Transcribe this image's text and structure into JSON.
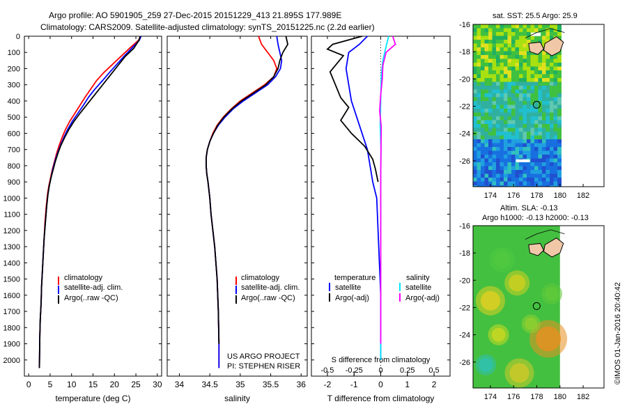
{
  "header": {
    "line1": "Argo profile: AO 5901905_259 27-Dec-2015 20151229_413 21.895S 177.989E",
    "line2": "Climatology: CARS2009. Satellite-adjusted climatology: synTS_20151225.nc (2.2d earlier)"
  },
  "legend": {
    "climatology": "climatology",
    "satellite_adj": "satellite-adj. clim.",
    "argo_raw": "Argo(..raw -QC)",
    "temperature_head": "temperature",
    "salinity_head": "salinity",
    "satellite": "satellite",
    "argo_adj": "Argo(-adj)"
  },
  "project": {
    "line1": "US ARGO PROJECT",
    "line2": "PI: STEPHEN RISER"
  },
  "map_top_title": "sat. SST: 25.5 Argo: 25.9",
  "map_bottom_title1": "Altim. SLA: -0.13",
  "map_bottom_title2": "Argo h1000: -0.13 h2000: -0.13",
  "watermark": "©IMOS 01-Jan-2016 20:40:42",
  "colors": {
    "climatology": "#ff0000",
    "satellite": "#0000ff",
    "argo": "#000000",
    "sat_salinity": "#00e5ff",
    "argo_salinity": "#ff00ff",
    "land": "#f0c8a8"
  },
  "chart_data": [
    {
      "type": "line",
      "xlabel": "temperature (deg C)",
      "ylabel": "",
      "xlim": [
        -1,
        31
      ],
      "ylim": [
        2100,
        0
      ],
      "xticks": [
        0,
        5,
        10,
        15,
        20,
        25,
        30
      ],
      "yticks": [
        0,
        100,
        200,
        300,
        400,
        500,
        600,
        700,
        800,
        900,
        1000,
        1100,
        1200,
        1300,
        1400,
        1500,
        1600,
        1700,
        1800,
        1900,
        2000
      ],
      "series": [
        {
          "name": "climatology",
          "color": "#ff0000",
          "x": [
            26.2,
            25.6,
            23.5,
            21.5,
            19.5,
            17.5,
            15.8,
            14.5,
            13.2,
            12,
            10.8,
            9.6,
            8.6,
            7.8,
            7.1,
            6.5,
            6,
            5.5,
            5.1,
            4.7,
            4.4,
            4.1,
            3.8,
            3.6,
            3.4,
            3.2,
            3,
            2.9,
            2.7,
            2.6,
            2.55,
            2.5
          ],
          "y": [
            0,
            25,
            75,
            125,
            175,
            225,
            275,
            325,
            375,
            425,
            475,
            525,
            575,
            625,
            675,
            725,
            775,
            825,
            875,
            925,
            975,
            1050,
            1150,
            1250,
            1350,
            1450,
            1550,
            1650,
            1750,
            1850,
            1950,
            2050
          ]
        },
        {
          "name": "satellite-adj. clim.",
          "color": "#0000ff",
          "x": [
            26.2,
            25.8,
            24,
            22.2,
            20.5,
            18.8,
            17.2,
            15.5,
            14,
            12.8,
            11.5,
            10.2,
            9.1,
            8.2,
            7.4,
            6.7,
            6.1,
            5.6,
            5.2,
            4.8,
            4.5,
            4.2,
            3.9,
            3.6,
            3.4,
            3.2,
            3,
            2.9,
            2.7,
            2.6,
            2.55,
            2.5
          ],
          "y": [
            0,
            25,
            75,
            125,
            175,
            225,
            275,
            325,
            375,
            425,
            475,
            525,
            575,
            625,
            675,
            725,
            775,
            825,
            875,
            925,
            975,
            1050,
            1150,
            1250,
            1350,
            1450,
            1550,
            1650,
            1750,
            1850,
            1950,
            2050
          ]
        },
        {
          "name": "Argo(..raw -QC)",
          "color": "#000000",
          "x": [
            26,
            25.7,
            24.5,
            22.5,
            21,
            19.5,
            18,
            16.5,
            15,
            13.5,
            12,
            10.6,
            9.4,
            8.4,
            7.5,
            6.8,
            6.2,
            5.7,
            5.2,
            4.8,
            4.5,
            4.2,
            3.9,
            3.6,
            3.4,
            3.2,
            3,
            2.9,
            2.7,
            2.6,
            2.55,
            2.5
          ],
          "y": [
            0,
            25,
            75,
            125,
            175,
            225,
            275,
            325,
            375,
            425,
            475,
            525,
            575,
            625,
            675,
            725,
            775,
            825,
            875,
            925,
            975,
            1050,
            1150,
            1250,
            1350,
            1450,
            1550,
            1650,
            1750,
            1850,
            1950,
            2050
          ]
        }
      ]
    },
    {
      "type": "line",
      "xlabel": "salinity",
      "ylabel": "",
      "xlim": [
        33.8,
        36.1
      ],
      "ylim": [
        2100,
        0
      ],
      "xticks": [
        34,
        34.5,
        35,
        35.5,
        36
      ],
      "series": [
        {
          "name": "climatology",
          "color": "#ff0000",
          "x": [
            35.3,
            35.35,
            35.45,
            35.55,
            35.6,
            35.55,
            35.4,
            35.2,
            35,
            34.85,
            34.72,
            34.62,
            34.55,
            34.5,
            34.46,
            34.44,
            34.44,
            34.45,
            34.47,
            34.5,
            34.52,
            34.55,
            34.58,
            34.6,
            34.62,
            34.63,
            34.64,
            34.65,
            34.65
          ],
          "y": [
            0,
            50,
            100,
            150,
            200,
            250,
            300,
            350,
            400,
            450,
            500,
            550,
            600,
            650,
            700,
            750,
            800,
            850,
            900,
            1000,
            1100,
            1200,
            1300,
            1400,
            1500,
            1600,
            1700,
            1900,
            2050
          ]
        },
        {
          "name": "satellite-adj. clim.",
          "color": "#0000ff",
          "x": [
            35.6,
            35.62,
            35.65,
            35.68,
            35.66,
            35.58,
            35.45,
            35.25,
            35.05,
            34.88,
            34.75,
            34.64,
            34.56,
            34.5,
            34.46,
            34.44,
            34.44,
            34.45,
            34.47,
            34.5,
            34.52,
            34.55,
            34.58,
            34.6,
            34.62,
            34.63,
            34.64,
            34.65,
            34.65
          ],
          "y": [
            0,
            50,
            100,
            150,
            200,
            250,
            300,
            350,
            400,
            450,
            500,
            550,
            600,
            650,
            700,
            750,
            800,
            850,
            900,
            1000,
            1100,
            1200,
            1300,
            1400,
            1500,
            1600,
            1700,
            1900,
            2050
          ]
        },
        {
          "name": "Argo(..raw -QC)",
          "color": "#000000",
          "x": [
            35.75,
            35.78,
            35.7,
            35.65,
            35.62,
            35.55,
            35.42,
            35.22,
            35.02,
            34.86,
            34.73,
            34.63,
            34.56,
            34.5,
            34.46,
            34.44,
            34.44,
            34.45,
            34.47,
            34.5,
            34.52,
            34.55,
            34.58,
            34.6,
            34.62,
            34.63,
            34.64,
            34.65
          ],
          "y": [
            0,
            50,
            100,
            150,
            200,
            250,
            300,
            350,
            400,
            450,
            500,
            550,
            600,
            650,
            700,
            750,
            800,
            850,
            900,
            1000,
            1100,
            1200,
            1300,
            1400,
            1500,
            1600,
            1700,
            1900
          ]
        }
      ]
    },
    {
      "type": "line",
      "xlabel": "T difference from climatology",
      "xlabel_top": "S difference from climatology",
      "xlim": [
        -2.6,
        2.6
      ],
      "ylim": [
        2100,
        0
      ],
      "xticks": [
        -2,
        -1,
        0,
        1,
        2
      ],
      "xticks_top": [
        -0.5,
        -0.25,
        0,
        0.25,
        0.5
      ],
      "xlim_top": [
        -0.65,
        0.65
      ],
      "series": [
        {
          "name": "satellite (temperature)",
          "color": "#0000ff",
          "x": [
            -0.5,
            -0.8,
            -1.2,
            -1.3,
            -1.2,
            -1.1,
            -0.9,
            -0.7,
            -0.5,
            -0.4,
            -0.3,
            -0.15,
            -0.1,
            -0.05,
            0,
            0,
            0
          ],
          "y": [
            0,
            50,
            100,
            200,
            300,
            400,
            500,
            600,
            700,
            800,
            900,
            1000,
            1200,
            1400,
            1600,
            1800,
            2000
          ]
        },
        {
          "name": "Argo(-adj) (temperature)",
          "color": "#000000",
          "x": [
            -0.7,
            -1.8,
            -2,
            -1.4,
            -1.6,
            -1.9,
            -1.7,
            -1.5,
            -1.2,
            -1.5,
            -1.1,
            -0.6,
            -0.3,
            -0.2,
            -0.1
          ],
          "y": [
            0,
            50,
            80,
            120,
            160,
            220,
            300,
            380,
            440,
            520,
            600,
            680,
            760,
            820,
            900
          ]
        },
        {
          "name": "satellite (salinity)",
          "color": "#00e5ff",
          "x": [
            0.3,
            0.22,
            0.08,
            0.02,
            0,
            -0.02,
            0.01,
            0,
            0,
            0,
            0
          ],
          "y": [
            0,
            50,
            150,
            250,
            400,
            550,
            700,
            850,
            1000,
            1500,
            2000
          ]
        },
        {
          "name": "Argo(-adj) (salinity)",
          "color": "#ff00ff",
          "x": [
            0.45,
            0.55,
            0.2,
            0.08,
            0.06,
            0,
            -0.04,
            0.02,
            0.01,
            0,
            0,
            0
          ],
          "y": [
            0,
            50,
            100,
            180,
            260,
            360,
            460,
            560,
            700,
            850,
            1000,
            1900
          ]
        }
      ]
    },
    {
      "type": "heatmap",
      "title": "sat. SST: 25.5 Argo: 25.9",
      "xlim": [
        172.5,
        183.8
      ],
      "ylim": [
        -27.9,
        -16
      ],
      "xticks": [
        174,
        176,
        178,
        180,
        182
      ],
      "yticks": [
        -16,
        -18,
        -20,
        -22,
        -24,
        -26
      ],
      "argo_position": {
        "lon": 177.989,
        "lat": -21.895
      }
    },
    {
      "type": "heatmap",
      "title": "Altim. SLA: -0.13",
      "xlim": [
        172.5,
        183.8
      ],
      "ylim": [
        -27.9,
        -16
      ],
      "xticks": [
        174,
        176,
        178,
        180,
        182
      ],
      "yticks": [
        -16,
        -18,
        -20,
        -22,
        -24,
        -26
      ],
      "argo_position": {
        "lon": 177.989,
        "lat": -21.895
      }
    }
  ]
}
